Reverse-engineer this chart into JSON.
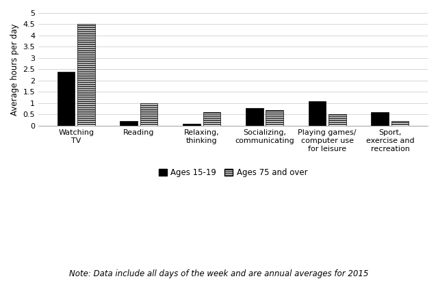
{
  "categories": [
    "Watching\nTV",
    "Reading",
    "Relaxing,\nthinking",
    "Socializing,\ncommunicating",
    "Playing games/\ncomputer use\nfor leisure",
    "Sport,\nexercise and\nrecreation"
  ],
  "ages_15_19": [
    2.4,
    0.2,
    0.1,
    0.8,
    1.1,
    0.6
  ],
  "ages_75_over": [
    4.5,
    1.0,
    0.6,
    0.7,
    0.5,
    0.2
  ],
  "ylabel": "Average hours per day",
  "ylim": [
    0,
    5
  ],
  "yticks": [
    0,
    0.5,
    1.0,
    1.5,
    2.0,
    2.5,
    3.0,
    3.5,
    4.0,
    4.5,
    5.0
  ],
  "legend_labels": [
    "Ages 15-19",
    "Ages 75 and over"
  ],
  "note": "Note: Data include all days of the week and are annual averages for 2015",
  "bg_color": "#ffffff",
  "bar_width": 0.28,
  "bar_gap": 0.04,
  "grid_color": "#d0d0d0"
}
